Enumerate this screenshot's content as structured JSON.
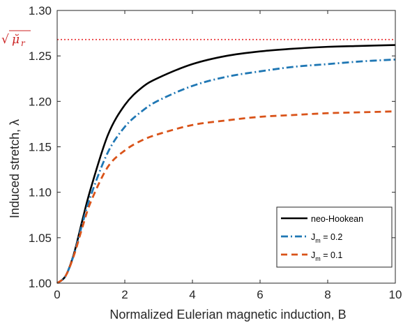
{
  "chart_data": {
    "type": "line",
    "xlabel": "Normalized Eulerian magnetic induction, B",
    "ylabel": "Induced stretch, λ",
    "xlim": [
      0,
      10
    ],
    "ylim": [
      1.0,
      1.3
    ],
    "x_ticks": [
      "0",
      "2",
      "4",
      "6",
      "8",
      "10"
    ],
    "y_ticks": [
      "1.00",
      "1.05",
      "1.10",
      "1.15",
      "1.20",
      "1.25",
      "1.30"
    ],
    "grid": false,
    "legend_position": "bottom-right",
    "reference_line": {
      "label_root": "√",
      "label_symbol": "μ̆",
      "label_sub": "r",
      "y": 1.268,
      "color": "#e8282b",
      "style": "dotted"
    },
    "series": [
      {
        "name_main": "neo-Hookean",
        "name_sub": "",
        "name_rest": "",
        "color": "#000000",
        "style": "solid",
        "x": [
          0,
          0.25,
          0.5,
          0.75,
          1,
          1.5,
          2,
          2.5,
          3,
          4,
          5,
          6,
          7,
          8,
          9,
          10
        ],
        "y": [
          1.0,
          1.008,
          1.033,
          1.07,
          1.105,
          1.163,
          1.196,
          1.215,
          1.226,
          1.241,
          1.25,
          1.255,
          1.258,
          1.26,
          1.261,
          1.262
        ]
      },
      {
        "name_main": "J",
        "name_sub": "m",
        "name_rest": " = 0.2",
        "color": "#1f77b4",
        "style": "dashdot",
        "x": [
          0,
          0.25,
          0.5,
          0.75,
          1,
          1.5,
          2,
          2.5,
          3,
          4,
          5,
          6,
          7,
          8,
          9,
          10
        ],
        "y": [
          1.0,
          1.008,
          1.032,
          1.066,
          1.097,
          1.144,
          1.172,
          1.189,
          1.201,
          1.217,
          1.227,
          1.233,
          1.238,
          1.241,
          1.244,
          1.246
        ]
      },
      {
        "name_main": "J",
        "name_sub": "m",
        "name_rest": " = 0.1",
        "color": "#d95319",
        "style": "dashed",
        "x": [
          0,
          0.25,
          0.5,
          0.75,
          1,
          1.5,
          2,
          2.5,
          3,
          4,
          5,
          6,
          7,
          8,
          9,
          10
        ],
        "y": [
          1.0,
          1.008,
          1.031,
          1.062,
          1.09,
          1.128,
          1.146,
          1.157,
          1.164,
          1.174,
          1.179,
          1.183,
          1.185,
          1.187,
          1.188,
          1.189
        ]
      }
    ]
  }
}
